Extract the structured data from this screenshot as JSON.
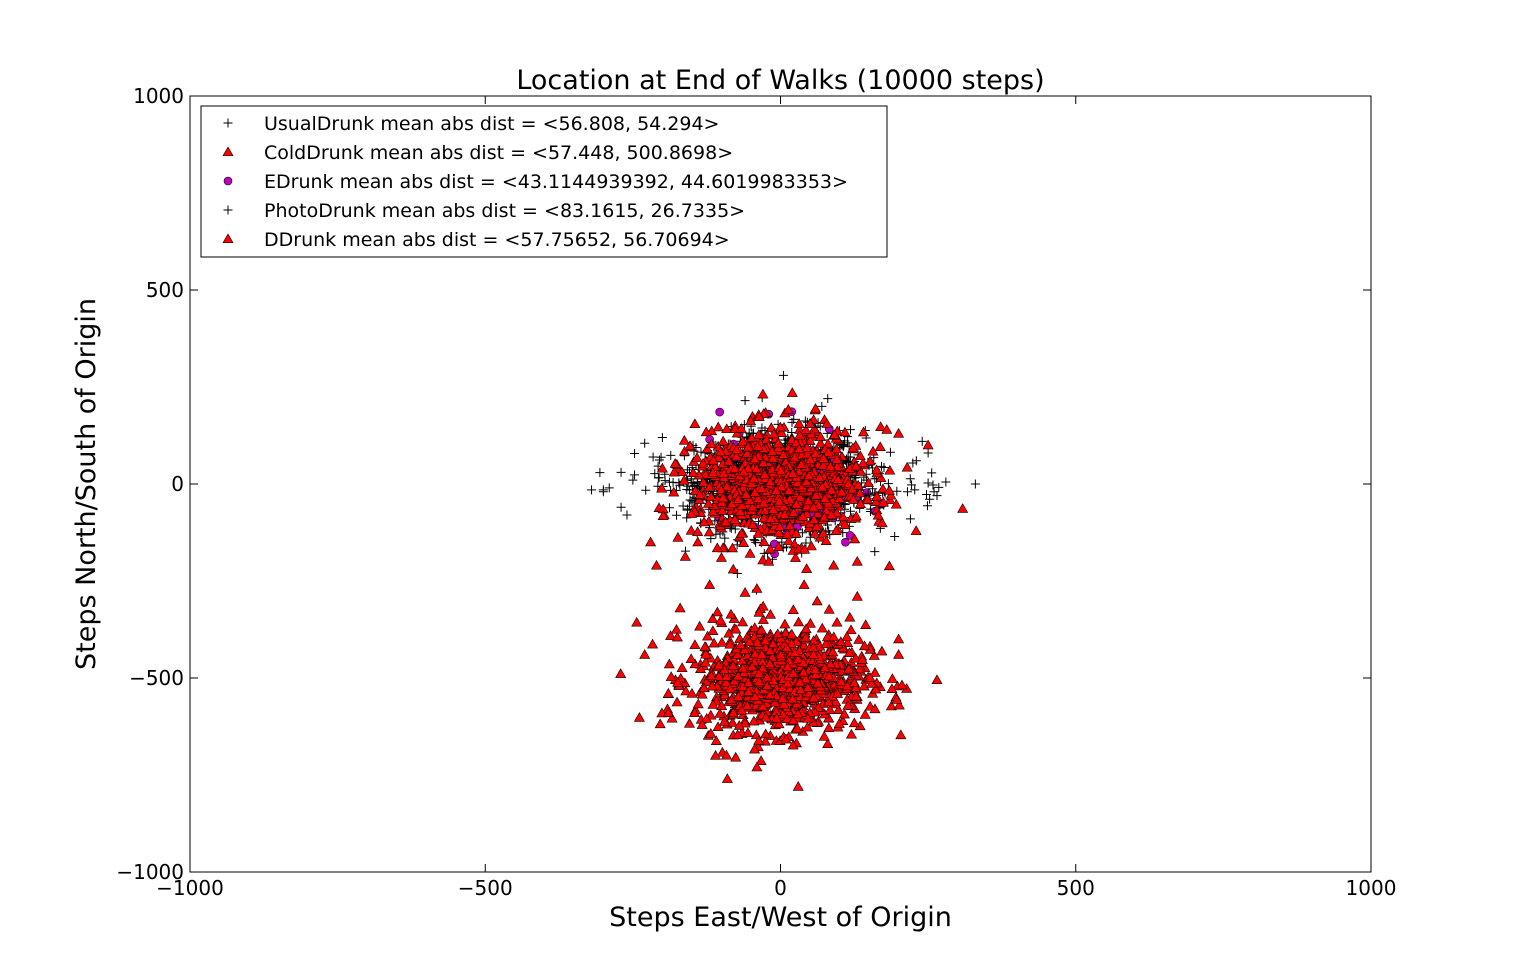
{
  "chart_data": {
    "type": "scatter",
    "title": "Location at End of Walks (10000 steps)",
    "xlabel": "Steps East/West of Origin",
    "ylabel": "Steps North/South of Origin",
    "xlim": [
      -1000,
      1000
    ],
    "ylim": [
      -1000,
      1000
    ],
    "xticks": [
      -1000,
      -500,
      0,
      500,
      1000
    ],
    "yticks": [
      -1000,
      -500,
      0,
      500,
      1000
    ],
    "xtick_labels": [
      "−1000",
      "−500",
      "0",
      "500",
      "1000"
    ],
    "ytick_labels": [
      "−1000",
      "−500",
      "0",
      "500",
      "1000"
    ],
    "grid": false,
    "legend_position": "top-left",
    "series": [
      {
        "name": "UsualDrunk mean abs dist = <56.808, 54.294>",
        "marker": "plus",
        "color": "#000000",
        "n_points": 1000,
        "center": [
          0,
          0
        ],
        "spread": [
          71,
          68
        ],
        "outliers": [
          [
            -320,
            -15
          ],
          [
            -300,
            -20
          ],
          [
            -270,
            -60
          ],
          [
            -260,
            -80
          ],
          [
            -230,
            105
          ],
          [
            -200,
            120
          ],
          [
            280,
            5
          ],
          [
            330,
            0
          ],
          [
            265,
            -30
          ],
          [
            220,
            -90
          ],
          [
            -60,
            215
          ],
          [
            5,
            280
          ],
          [
            70,
            200
          ],
          [
            80,
            220
          ],
          [
            215,
            -20
          ]
        ]
      },
      {
        "name": "ColdDrunk mean abs dist = <57.448, 500.8698>",
        "marker": "triangle",
        "color": "#ff0000",
        "n_points": 1000,
        "center": [
          0,
          -500
        ],
        "spread": [
          72,
          68
        ],
        "outliers": [
          [
            -230,
            -440
          ],
          [
            -190,
            -540
          ],
          [
            -150,
            -540
          ],
          [
            -190,
            -590
          ],
          [
            -170,
            -320
          ],
          [
            265,
            -505
          ],
          [
            200,
            -400
          ],
          [
            200,
            -440
          ],
          [
            130,
            -290
          ],
          [
            160,
            -580
          ],
          [
            30,
            -780
          ],
          [
            -90,
            -760
          ],
          [
            -110,
            -700
          ],
          [
            -40,
            -730
          ],
          [
            -120,
            -260
          ],
          [
            40,
            -260
          ],
          [
            -40,
            -270
          ],
          [
            -60,
            -280
          ]
        ]
      },
      {
        "name": "EDrunk mean abs dist = <43.1144939392, 44.6019983353>",
        "marker": "circle",
        "color": "#bf00bf",
        "n_points": 300,
        "center": [
          0,
          0
        ],
        "spread": [
          52,
          52
        ],
        "outliers": [
          [
            -20,
            180
          ],
          [
            160,
            -70
          ],
          [
            110,
            -150
          ],
          [
            -120,
            115
          ],
          [
            -10,
            -180
          ],
          [
            -70,
            130
          ]
        ]
      },
      {
        "name": "PhotoDrunk mean abs dist = <83.1615, 26.7335>",
        "marker": "plus",
        "color": "#000000",
        "n_points": 300,
        "center": [
          0,
          0
        ],
        "spread": [
          104,
          33
        ],
        "outliers": [
          [
            -300,
            -15
          ],
          [
            -290,
            -10
          ],
          [
            230,
            60
          ],
          [
            250,
            80
          ],
          [
            260,
            -20
          ],
          [
            240,
            110
          ],
          [
            -250,
            10
          ],
          [
            -270,
            30
          ]
        ]
      },
      {
        "name": "DDrunk mean abs dist = <57.75652, 56.70694>",
        "marker": "triangle",
        "color": "#ff0000",
        "n_points": 1000,
        "center": [
          0,
          0
        ],
        "spread": [
          72,
          70
        ],
        "outliers": [
          [
            20,
            235
          ],
          [
            -220,
            -150
          ],
          [
            -210,
            -210
          ],
          [
            250,
            100
          ],
          [
            200,
            130
          ],
          [
            180,
            140
          ],
          [
            -140,
            -150
          ],
          [
            90,
            -210
          ],
          [
            -20,
            -200
          ],
          [
            -100,
            -190
          ],
          [
            130,
            -200
          ],
          [
            -80,
            -220
          ],
          [
            -200,
            40
          ],
          [
            -180,
            30
          ]
        ]
      }
    ]
  }
}
